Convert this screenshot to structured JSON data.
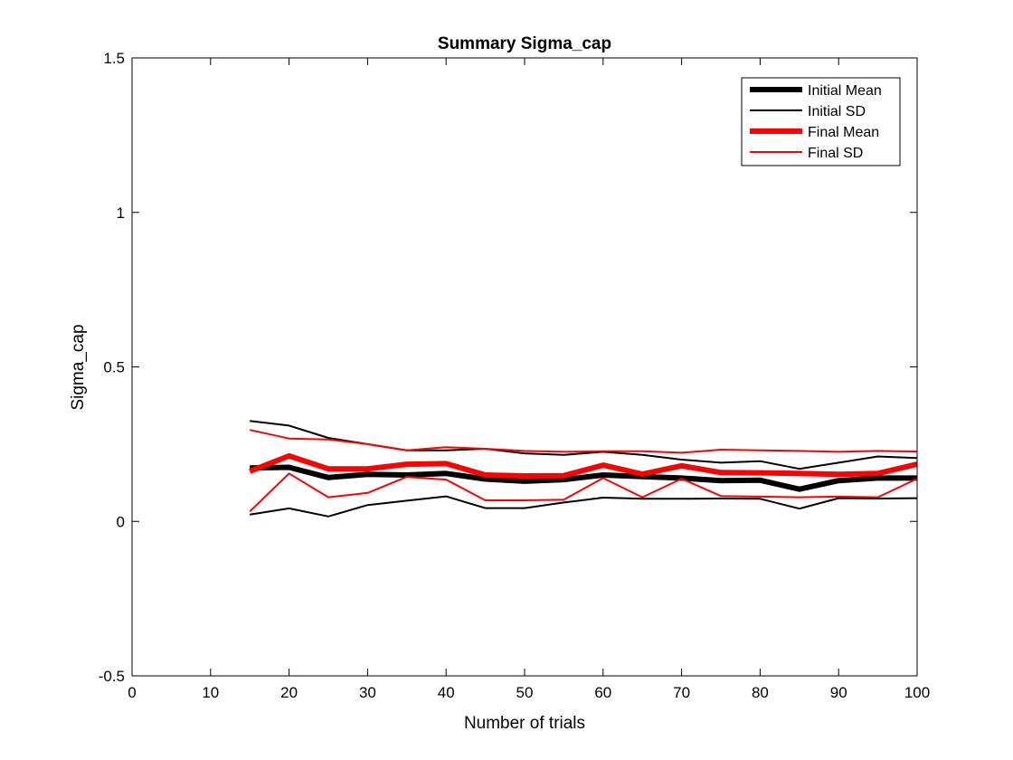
{
  "chart_data": {
    "type": "line",
    "title": "Summary Sigma_cap",
    "xlabel": "Number of trials",
    "ylabel": "Sigma_cap",
    "xlim": [
      0,
      100
    ],
    "ylim": [
      -0.5,
      1.5
    ],
    "xticks": [
      0,
      10,
      20,
      30,
      40,
      50,
      60,
      70,
      80,
      90,
      100
    ],
    "yticks": [
      -0.5,
      0,
      0.5,
      1,
      1.5
    ],
    "xtick_labels": [
      "0",
      "10",
      "20",
      "30",
      "40",
      "50",
      "60",
      "70",
      "80",
      "90",
      "100"
    ],
    "ytick_labels": [
      "-0.5",
      "0",
      "0.5",
      "1",
      "1.5"
    ],
    "grid": false,
    "legend_position": "top-right",
    "x": [
      15,
      20,
      25,
      30,
      35,
      40,
      45,
      50,
      55,
      60,
      65,
      70,
      75,
      80,
      85,
      90,
      95,
      100
    ],
    "series": [
      {
        "name": "Initial Mean",
        "color": "#000000",
        "width": 6,
        "values": [
          0.173,
          0.175,
          0.142,
          0.152,
          0.15,
          0.155,
          0.137,
          0.13,
          0.135,
          0.15,
          0.145,
          0.14,
          0.132,
          0.133,
          0.104,
          0.132,
          0.14,
          0.14
        ]
      },
      {
        "name": "Initial SD",
        "color": "#000000",
        "width": 2,
        "values": [
          0.325,
          0.31,
          0.27,
          0.25,
          0.23,
          0.23,
          0.235,
          0.22,
          0.215,
          0.225,
          0.215,
          0.2,
          0.19,
          0.195,
          0.17,
          0.19,
          0.21,
          0.205
        ]
      },
      {
        "name": "",
        "color": "#000000",
        "width": 2,
        "values": [
          0.022,
          0.042,
          0.016,
          0.053,
          0.067,
          0.081,
          0.043,
          0.043,
          0.061,
          0.077,
          0.073,
          0.073,
          0.074,
          0.073,
          0.041,
          0.075,
          0.074,
          0.075
        ]
      },
      {
        "name": "Final Mean",
        "color": "#ff0000",
        "width": 6,
        "values": [
          0.162,
          0.212,
          0.17,
          0.17,
          0.185,
          0.187,
          0.15,
          0.147,
          0.148,
          0.182,
          0.153,
          0.18,
          0.158,
          0.157,
          0.155,
          0.152,
          0.155,
          0.185
        ]
      },
      {
        "name": "Final SD",
        "color": "#ff0000",
        "width": 2,
        "values": [
          0.296,
          0.268,
          0.265,
          0.25,
          0.23,
          0.24,
          0.235,
          0.228,
          0.225,
          0.227,
          0.227,
          0.222,
          0.232,
          0.23,
          0.228,
          0.225,
          0.228,
          0.226
        ]
      },
      {
        "name": "",
        "color": "#ff0000",
        "width": 2,
        "values": [
          0.032,
          0.155,
          0.078,
          0.092,
          0.144,
          0.135,
          0.068,
          0.068,
          0.07,
          0.14,
          0.078,
          0.138,
          0.082,
          0.08,
          0.078,
          0.08,
          0.078,
          0.138
        ]
      }
    ],
    "legend": [
      {
        "label": "Initial Mean",
        "color": "#000000",
        "width": 6
      },
      {
        "label": "Initial SD",
        "color": "#000000",
        "width": 2
      },
      {
        "label": "Final Mean",
        "color": "#ff0000",
        "width": 6
      },
      {
        "label": "Final SD",
        "color": "#ff0000",
        "width": 2
      }
    ]
  }
}
